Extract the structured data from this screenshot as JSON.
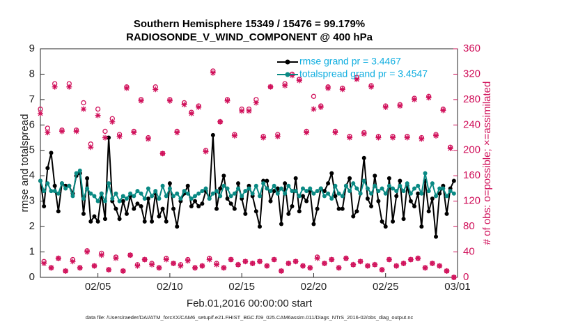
{
  "chart_data": {
    "type": "line",
    "title": "Southern Hemisphere 15349 / 15476 = 99.179%",
    "subtitle": "RADIOSONDE_V_WIND_COMPONENT @ 400 hPa",
    "xlabel": "Feb.01,2016 00:00:00 start",
    "ylabel": "rmse and totalspread",
    "y2label": "# of obs: o=possible; ×=assimilated",
    "footnote": "data file: /Users/raeder/DAI/ATM_forcXX/CAM6_setup/f.e21.FHIST_BGC.f09_025.CAM6assim.011/Diags_NTrS_2016-02/obs_diag_output.nc",
    "xlim": [
      1,
      30
    ],
    "xticks": [
      {
        "value": 5,
        "label": "02/05"
      },
      {
        "value": 10,
        "label": "02/10"
      },
      {
        "value": 15,
        "label": "02/15"
      },
      {
        "value": 20,
        "label": "02/20"
      },
      {
        "value": 25,
        "label": "02/25"
      },
      {
        "value": 30,
        "label": "03/01"
      }
    ],
    "ylim": [
      0,
      9
    ],
    "yticks": [
      0,
      1,
      2,
      3,
      4,
      5,
      6,
      7,
      8,
      9
    ],
    "y2lim": [
      0,
      360
    ],
    "y2ticks": [
      0,
      40,
      80,
      120,
      160,
      200,
      240,
      280,
      320,
      360
    ],
    "y2color": "#d0105a",
    "x": [
      1,
      1.25,
      1.5,
      1.75,
      2,
      2.25,
      2.5,
      2.75,
      3,
      3.25,
      3.5,
      3.75,
      4,
      4.25,
      4.5,
      4.75,
      5,
      5.25,
      5.5,
      5.75,
      6,
      6.25,
      6.5,
      6.75,
      7,
      7.25,
      7.5,
      7.75,
      8,
      8.25,
      8.5,
      8.75,
      9,
      9.25,
      9.5,
      9.75,
      10,
      10.25,
      10.5,
      10.75,
      11,
      11.25,
      11.5,
      11.75,
      12,
      12.25,
      12.5,
      12.75,
      13,
      13.25,
      13.5,
      13.75,
      14,
      14.25,
      14.5,
      14.75,
      15,
      15.25,
      15.5,
      15.75,
      16,
      16.25,
      16.5,
      16.75,
      17,
      17.25,
      17.5,
      17.75,
      18,
      18.25,
      18.5,
      18.75,
      19,
      19.25,
      19.5,
      19.75,
      20,
      20.25,
      20.5,
      20.75,
      21,
      21.25,
      21.5,
      21.75,
      22,
      22.25,
      22.5,
      22.75,
      23,
      23.25,
      23.5,
      23.75,
      24,
      24.25,
      24.5,
      24.75,
      25,
      25.25,
      25.5,
      25.75,
      26,
      26.25,
      26.5,
      26.75,
      27,
      27.25,
      27.5,
      27.75,
      28,
      28.25,
      28.5,
      28.75,
      29,
      29.25,
      29.5,
      29.75
    ],
    "series": [
      {
        "name": "rmse grand pr = 3.4467",
        "color": "#000000",
        "marker": "dot",
        "values": [
          3.8,
          2.8,
          4.3,
          4.9,
          3.6,
          2.6,
          3.7,
          3.6,
          3.6,
          3.3,
          4.0,
          4.1,
          2.5,
          3.9,
          2.2,
          2.4,
          2.2,
          3.3,
          2.3,
          5.5,
          3.0,
          2.7,
          2.3,
          3.0,
          2.5,
          3.2,
          2.7,
          2.9,
          2.8,
          2.2,
          3.1,
          2.2,
          3.3,
          2.4,
          2.7,
          2.2,
          3.7,
          2.7,
          2.0,
          3.0,
          3.3,
          3.6,
          2.8,
          3.0,
          2.8,
          2.9,
          3.4,
          3.1,
          5.6,
          2.7,
          3.5,
          4.0,
          3.1,
          2.9,
          2.7,
          3.7,
          3.1,
          2.5,
          3.6,
          3.2,
          2.6,
          2.0,
          3.8,
          3.8,
          3.0,
          3.4,
          3.5,
          2.1,
          3.7,
          2.5,
          2.8,
          3.9,
          2.6,
          3.2,
          3.0,
          3.4,
          2.1,
          2.7,
          3.5,
          3.4,
          3.7,
          4.1,
          3.2,
          2.7,
          2.7,
          3.6,
          3.9,
          2.4,
          2.6,
          3.3,
          4.7,
          3.1,
          2.8,
          4.0,
          3.0,
          2.2,
          2.0,
          3.9,
          2.2,
          3.2,
          3.8,
          2.3,
          3.6,
          3.0,
          2.8,
          3.3,
          2.0,
          3.8,
          2.6,
          3.1,
          1.6,
          3.3,
          3.6,
          2.5,
          3.5,
          3.8
        ]
      },
      {
        "name": "totalspread grand pr = 3.4547",
        "color": "#0a8a84",
        "marker": "dot",
        "values": [
          3.8,
          3.4,
          3.7,
          3.4,
          3.4,
          3.3,
          3.7,
          3.5,
          3.6,
          3.2,
          4.1,
          4.2,
          3.1,
          3.5,
          3.3,
          3.2,
          3.0,
          3.3,
          3.0,
          3.7,
          3.1,
          3.3,
          3.0,
          3.2,
          3.1,
          3.3,
          3.2,
          3.4,
          3.3,
          3.1,
          3.5,
          3.2,
          3.4,
          3.1,
          3.6,
          3.2,
          3.5,
          3.2,
          3.3,
          3.1,
          3.4,
          3.3,
          3.1,
          3.2,
          3.3,
          3.4,
          3.5,
          3.1,
          3.3,
          3.4,
          3.2,
          3.6,
          3.5,
          3.2,
          3.3,
          3.5,
          3.2,
          3.4,
          3.5,
          3.3,
          3.6,
          3.2,
          3.7,
          3.5,
          3.4,
          3.6,
          3.3,
          3.5,
          3.3,
          3.6,
          3.4,
          3.4,
          3.2,
          3.5,
          3.4,
          3.5,
          3.3,
          3.4,
          3.5,
          3.2,
          3.3,
          3.1,
          3.6,
          3.3,
          3.2,
          3.6,
          3.4,
          3.7,
          3.5,
          3.3,
          3.8,
          3.5,
          3.3,
          3.6,
          3.4,
          3.5,
          3.3,
          3.6,
          3.5,
          3.4,
          3.6,
          3.4,
          3.7,
          3.3,
          3.5,
          3.6,
          3.3,
          4.1,
          3.4,
          3.7,
          3.2,
          3.5,
          3.5,
          3.2,
          3.4,
          3.3
        ]
      },
      {
        "axis": "y2",
        "color": "#d0105a",
        "marker": "circle",
        "values": [
          265,
          25,
          235,
          15,
          305,
          30,
          232,
          10,
          305,
          28,
          232,
          15,
          275,
          42,
          210,
          18,
          265,
          38,
          230,
          12,
          250,
          32,
          225,
          10,
          300,
          35,
          230,
          20,
          280,
          28,
          220,
          22,
          300,
          15,
          195,
          30,
          280,
          22,
          230,
          20,
          275,
          28,
          260,
          15,
          270,
          18,
          200,
          30,
          325,
          22,
          245,
          15,
          280,
          28,
          225,
          20,
          265,
          25,
          265,
          22,
          280,
          25,
          222,
          18,
          300,
          28,
          225,
          10,
          305,
          22,
          320,
          25,
          312,
          18,
          230,
          15,
          285,
          32,
          270,
          22,
          300,
          28,
          230,
          15,
          298,
          30,
          222,
          20,
          315,
          25,
          228,
          18,
          302,
          20,
          222,
          12,
          270,
          28,
          222,
          18,
          272,
          22,
          222,
          28,
          282,
          30,
          220,
          15,
          285,
          22,
          225,
          18,
          265,
          10,
          205,
          0
        ]
      },
      {
        "axis": "y2",
        "color": "#d0105a",
        "marker": "asterisk",
        "values": [
          258,
          22,
          228,
          15,
          300,
          30,
          230,
          10,
          300,
          25,
          230,
          15,
          265,
          40,
          205,
          18,
          255,
          35,
          220,
          12,
          245,
          30,
          222,
          10,
          298,
          35,
          228,
          18,
          278,
          28,
          218,
          20,
          296,
          15,
          195,
          28,
          278,
          22,
          228,
          18,
          272,
          26,
          258,
          15,
          268,
          18,
          198,
          28,
          322,
          20,
          245,
          15,
          278,
          28,
          223,
          20,
          262,
          25,
          262,
          22,
          275,
          25,
          220,
          18,
          300,
          28,
          222,
          10,
          302,
          22,
          318,
          25,
          310,
          18,
          228,
          15,
          265,
          30,
          268,
          22,
          298,
          28,
          228,
          15,
          296,
          30,
          220,
          20,
          312,
          25,
          226,
          18,
          300,
          20,
          220,
          12,
          268,
          28,
          220,
          18,
          270,
          22,
          220,
          28,
          280,
          30,
          218,
          15,
          283,
          22,
          223,
          18,
          263,
          10,
          203,
          0
        ]
      }
    ]
  }
}
